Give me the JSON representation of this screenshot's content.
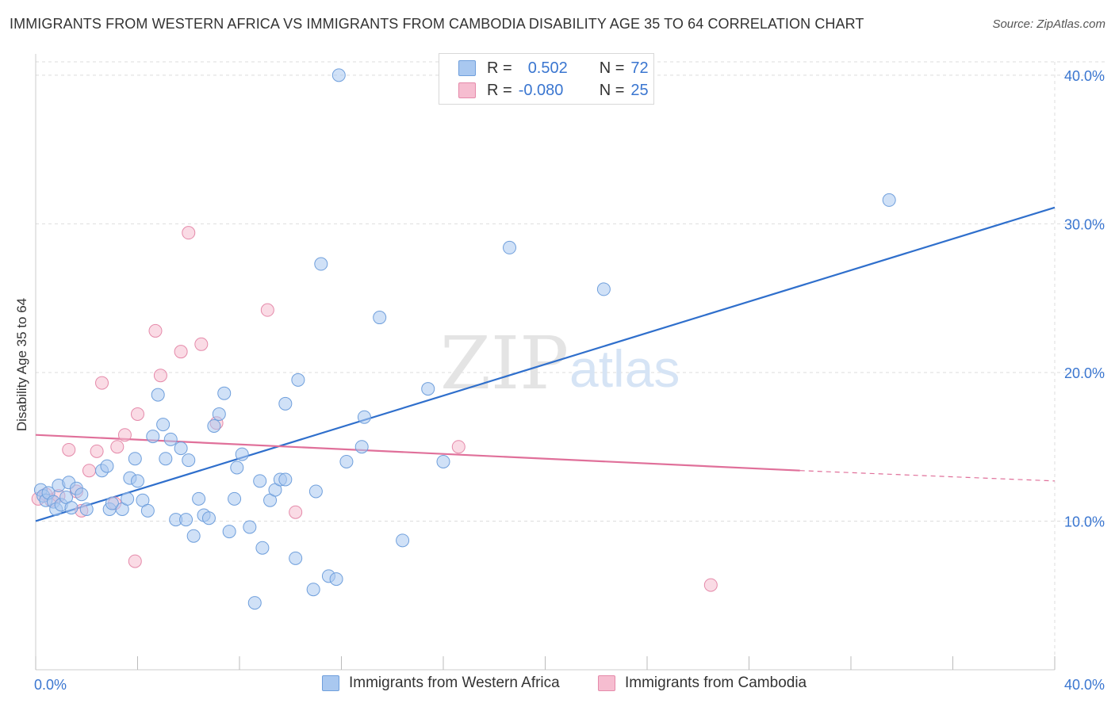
{
  "title": "IMMIGRANTS FROM WESTERN AFRICA VS IMMIGRANTS FROM CAMBODIA DISABILITY AGE 35 TO 64 CORRELATION CHART",
  "source": "Source: ZipAtlas.com",
  "watermark": {
    "zip": "ZIP",
    "atlas": "atlas"
  },
  "legend": {
    "rows": [
      {
        "r_label": "R =",
        "r_value": "0.502",
        "n_label": "N =",
        "n_value": "72"
      },
      {
        "r_label": "R =",
        "r_value": "-0.080",
        "n_label": "N =",
        "n_value": "25"
      }
    ]
  },
  "colors": {
    "blue_fill": "#a9c8f0",
    "blue_stroke": "#6f9fdc",
    "blue_line": "#2f6fcc",
    "pink_fill": "#f6bdd0",
    "pink_stroke": "#e58aaa",
    "pink_line": "#e0709a",
    "tick_text": "#3a76d0",
    "grid": "#dddddd"
  },
  "chart_data": {
    "type": "scatter",
    "title": "IMMIGRANTS FROM WESTERN AFRICA VS IMMIGRANTS FROM CAMBODIA DISABILITY AGE 35 TO 64 CORRELATION CHART",
    "xlabel": "",
    "ylabel": "Disability Age 35 to 64",
    "xlim": [
      0,
      40
    ],
    "ylim": [
      0,
      40.9
    ],
    "x_tick_labels": [
      "0.0%",
      "40.0%"
    ],
    "y_ticks": [
      10,
      20,
      30,
      40
    ],
    "y_tick_labels": [
      "10.0%",
      "20.0%",
      "30.0%",
      "40.0%"
    ],
    "grid": true,
    "legend_position": "bottom",
    "series": [
      {
        "name": "Immigrants from Western Africa",
        "color": "#a9c8f0",
        "points": [
          [
            0.2,
            12.1
          ],
          [
            0.3,
            11.7
          ],
          [
            0.4,
            11.4
          ],
          [
            0.5,
            11.9
          ],
          [
            0.7,
            11.3
          ],
          [
            0.8,
            10.8
          ],
          [
            0.9,
            12.4
          ],
          [
            1.0,
            11.1
          ],
          [
            1.2,
            11.6
          ],
          [
            1.3,
            12.6
          ],
          [
            1.4,
            10.9
          ],
          [
            1.6,
            12.2
          ],
          [
            1.8,
            11.8
          ],
          [
            2.0,
            10.8
          ],
          [
            2.6,
            13.4
          ],
          [
            2.8,
            13.7
          ],
          [
            2.9,
            10.8
          ],
          [
            3.0,
            11.2
          ],
          [
            3.4,
            10.8
          ],
          [
            3.6,
            11.5
          ],
          [
            3.7,
            12.9
          ],
          [
            3.9,
            14.2
          ],
          [
            4.0,
            12.7
          ],
          [
            4.2,
            11.4
          ],
          [
            4.4,
            10.7
          ],
          [
            4.6,
            15.7
          ],
          [
            4.8,
            18.5
          ],
          [
            5.0,
            16.5
          ],
          [
            5.1,
            14.2
          ],
          [
            5.3,
            15.5
          ],
          [
            5.5,
            10.1
          ],
          [
            5.7,
            14.9
          ],
          [
            5.9,
            10.1
          ],
          [
            6.0,
            14.1
          ],
          [
            6.2,
            9.0
          ],
          [
            6.4,
            11.5
          ],
          [
            6.6,
            10.4
          ],
          [
            6.8,
            10.2
          ],
          [
            7.0,
            16.4
          ],
          [
            7.2,
            17.2
          ],
          [
            7.4,
            18.6
          ],
          [
            7.6,
            9.3
          ],
          [
            7.8,
            11.5
          ],
          [
            7.9,
            13.6
          ],
          [
            8.1,
            14.5
          ],
          [
            8.4,
            9.6
          ],
          [
            8.6,
            4.5
          ],
          [
            8.8,
            12.7
          ],
          [
            8.9,
            8.2
          ],
          [
            9.2,
            11.4
          ],
          [
            9.4,
            12.1
          ],
          [
            9.6,
            12.8
          ],
          [
            9.8,
            12.8
          ],
          [
            9.8,
            17.9
          ],
          [
            10.2,
            7.5
          ],
          [
            10.3,
            19.5
          ],
          [
            10.9,
            5.4
          ],
          [
            11.0,
            12.0
          ],
          [
            11.2,
            27.3
          ],
          [
            11.5,
            6.3
          ],
          [
            11.8,
            6.1
          ],
          [
            11.9,
            40.0
          ],
          [
            12.2,
            14.0
          ],
          [
            12.8,
            15.0
          ],
          [
            12.9,
            17.0
          ],
          [
            13.5,
            23.7
          ],
          [
            14.4,
            8.7
          ],
          [
            15.4,
            18.9
          ],
          [
            16.0,
            14.0
          ],
          [
            18.6,
            28.4
          ],
          [
            22.3,
            25.6
          ],
          [
            33.5,
            31.6
          ]
        ],
        "trend": {
          "x": [
            0,
            40
          ],
          "y": [
            10.0,
            31.1
          ]
        }
      },
      {
        "name": "Immigrants from Cambodia",
        "color": "#f6bdd0",
        "points": [
          [
            0.1,
            11.5
          ],
          [
            0.4,
            11.8
          ],
          [
            0.6,
            11.4
          ],
          [
            0.9,
            11.7
          ],
          [
            1.3,
            14.8
          ],
          [
            1.6,
            12.0
          ],
          [
            1.8,
            10.7
          ],
          [
            2.1,
            13.4
          ],
          [
            2.4,
            14.7
          ],
          [
            2.6,
            19.3
          ],
          [
            3.1,
            11.2
          ],
          [
            3.2,
            15.0
          ],
          [
            3.5,
            15.8
          ],
          [
            3.9,
            7.3
          ],
          [
            4.0,
            17.2
          ],
          [
            4.7,
            22.8
          ],
          [
            4.9,
            19.8
          ],
          [
            5.7,
            21.4
          ],
          [
            6.0,
            29.4
          ],
          [
            6.5,
            21.9
          ],
          [
            7.1,
            16.6
          ],
          [
            9.1,
            24.2
          ],
          [
            10.2,
            10.6
          ],
          [
            16.6,
            15.0
          ],
          [
            26.5,
            5.7
          ]
        ],
        "trend_solid": {
          "x": [
            0,
            30
          ],
          "y": [
            15.8,
            13.4
          ]
        },
        "trend_dashed": {
          "x": [
            30,
            40
          ],
          "y": [
            13.4,
            12.7
          ]
        }
      }
    ]
  },
  "bottom_legend": {
    "item1": "Immigrants from Western Africa",
    "item2": "Immigrants from Cambodia"
  }
}
